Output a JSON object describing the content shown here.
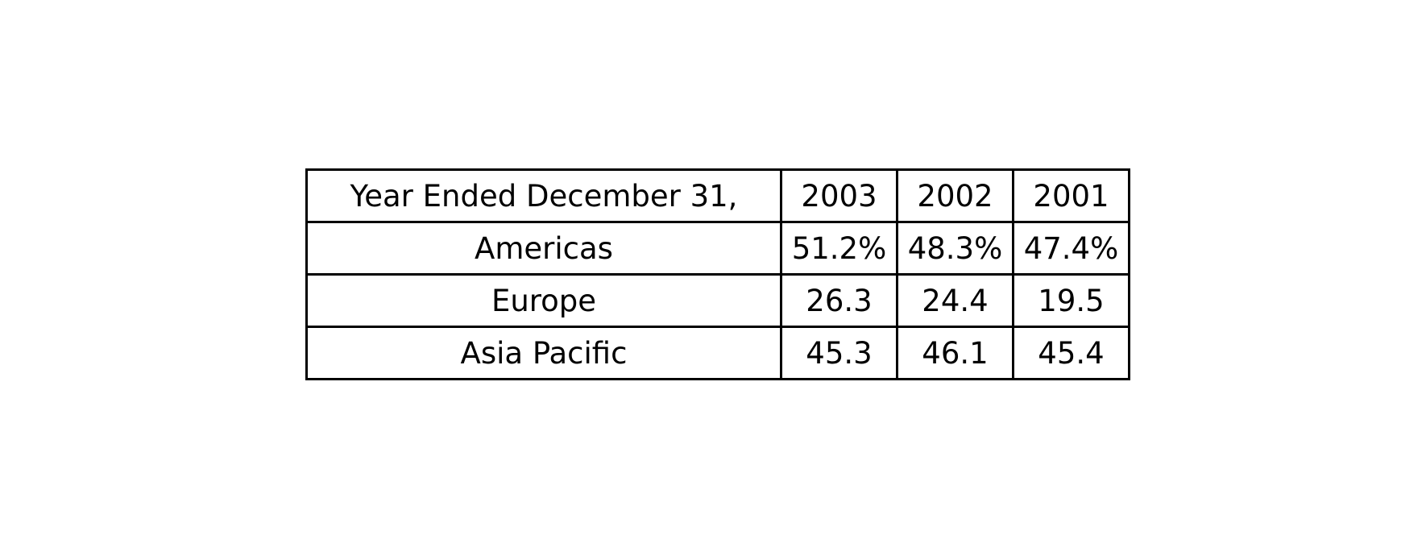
{
  "chart_data": {
    "type": "table",
    "columns": [
      "Year Ended December 31,",
      "2003",
      "2002",
      "2001"
    ],
    "rows": [
      {
        "label": "Americas",
        "values": [
          "51.2%",
          "48.3%",
          "47.4%"
        ]
      },
      {
        "label": "Europe",
        "values": [
          "26.3",
          "24.4",
          "19.5"
        ]
      },
      {
        "label": "Asia Pacific",
        "values": [
          "45.3",
          "46.1",
          "45.4"
        ]
      }
    ]
  },
  "colors": {
    "background": "#ffffff",
    "border": "#000000",
    "text": "#000000"
  }
}
